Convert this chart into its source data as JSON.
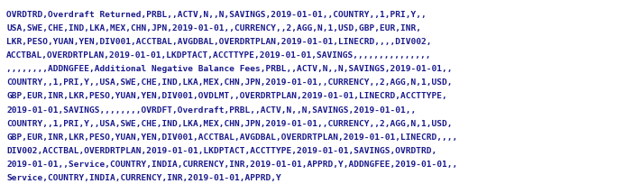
{
  "background_color": "#ffffff",
  "text_color": "#1a1a8c",
  "font_family": "monospace",
  "font_size": 6.8,
  "lines": [
    "OVRDTRD,Overdraft Returned,PRBL,,ACTV,N,,N,SAVINGS,2019-01-01,,COUNTRY,,1,PRI,Y,,",
    "USA,SWE,CHE,IND,LKA,MEX,CHN,JPN,2019-01-01,,CURRENCY,,2,AGG,N,1,USD,GBP,EUR,INR,",
    "LKR,PESO,YUAN,YEN,DIV001,ACCTBAL,AVGDBAL,OVERDRTPLAN,2019-01-01,LINECRD,,,,DIV002,",
    "ACCTBAL,OVERDRTPLAN,2019-01-01,LKDPTACT,ACCTTYPE,2019-01-01,SAVINGS,,,,,,,,,,,,,,,",
    ",,,,,,,,ADDNGFEE,Additional Negative Balance Fees,PRBL,,ACTV,N,,N,SAVINGS,2019-01-01,,",
    "COUNTRY,,1,PRI,Y,,USA,SWE,CHE,IND,LKA,MEX,CHN,JPN,2019-01-01,,CURRENCY,,2,AGG,N,1,USD,",
    "GBP,EUR,INR,LKR,PESO,YUAN,YEN,DIV001,OVDLMT,,OVERDRTPLAN,2019-01-01,LINECRD,ACCTTYPE,",
    "2019-01-01,SAVINGS,,,,,,,,OVRDFT,Overdraft,PRBL,,ACTV,N,,N,SAVINGS,2019-01-01,,",
    "COUNTRY,,1,PRI,Y,,USA,SWE,CHE,IND,LKA,MEX,CHN,JPN,2019-01-01,,CURRENCY,,2,AGG,N,1,USD,",
    "GBP,EUR,INR,LKR,PESO,YUAN,YEN,DIV001,ACCTBAL,AVGDBAL,OVERDRTPLAN,2019-01-01,LINECRD,,,,",
    "DIV002,ACCTBAL,OVERDRTPLAN,2019-01-01,LKDPTACT,ACCTTYPE,2019-01-01,SAVINGS,OVRDTRD,",
    "2019-01-01,,Service,COUNTRY,INDIA,CURRENCY,INR,2019-01-01,APPRD,Y,ADDNGFEE,2019-01-01,,",
    "Service,COUNTRY,INDIA,CURRENCY,INR,2019-01-01,APPRD,Y"
  ],
  "fig_width": 7.03,
  "fig_height": 2.14,
  "dpi": 100
}
